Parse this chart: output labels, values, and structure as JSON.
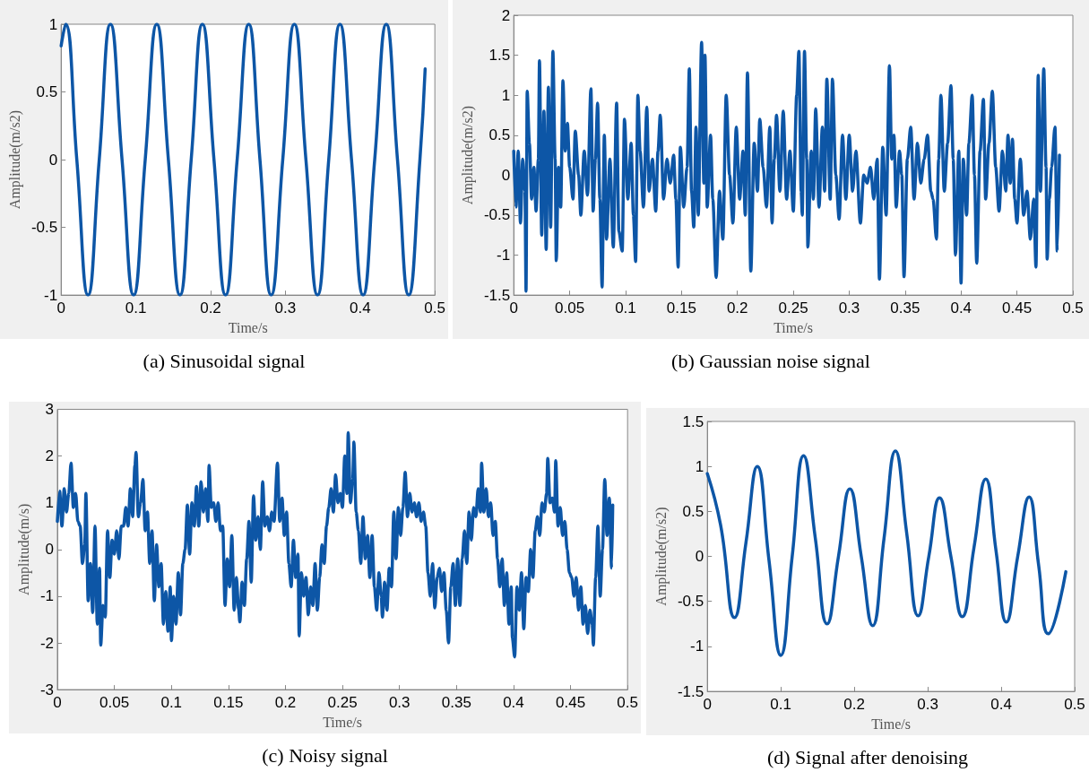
{
  "chart_data": [
    {
      "type": "line",
      "title": "(a) Sinusoidal signal",
      "xlabel": "Time/s",
      "ylabel": "Amplitude(m/s2)",
      "x": [
        0,
        0.006,
        0.021,
        0.036,
        0.051,
        0.066,
        0.0815,
        0.097,
        0.1125,
        0.128,
        0.1435,
        0.159,
        0.174,
        0.189,
        0.2045,
        0.22,
        0.2355,
        0.251,
        0.266,
        0.281,
        0.2965,
        0.312,
        0.3275,
        0.343,
        0.358,
        0.373,
        0.3885,
        0.404,
        0.4195,
        0.435,
        0.45,
        0.465,
        0.48,
        0.487
      ],
      "series": [
        {
          "color": "#0d56a6",
          "values": [
            0.84,
            1,
            0,
            -1,
            0,
            1,
            0,
            -1,
            0,
            1,
            0,
            -1,
            0,
            1,
            0,
            -1,
            0,
            1,
            0,
            -1,
            0,
            1,
            0,
            -1,
            0,
            1,
            0,
            -1,
            0,
            1,
            0,
            -1,
            0,
            0.67
          ]
        }
      ],
      "xlim": [
        0,
        0.5
      ],
      "xticks": [
        0,
        0.1,
        0.2,
        0.3,
        0.4,
        0.5
      ],
      "ylim": [
        -1,
        1
      ],
      "yticks": [
        -1,
        -0.5,
        0,
        0.5,
        1
      ]
    },
    {
      "type": "line",
      "title": "(b) Gaussian noise signal",
      "xlabel": "Time/s",
      "ylabel": "Amplitude(m/s2)",
      "x": [
        0,
        0.002,
        0.004,
        0.006,
        0.008,
        0.01,
        0.011,
        0.012,
        0.014,
        0.016,
        0.018,
        0.02,
        0.022,
        0.023,
        0.025,
        0.027,
        0.029,
        0.031,
        0.033,
        0.035,
        0.037,
        0.038,
        0.04,
        0.042,
        0.044,
        0.046,
        0.048,
        0.05,
        0.053,
        0.055,
        0.058,
        0.06,
        0.063,
        0.066,
        0.069,
        0.071,
        0.073,
        0.075,
        0.077,
        0.079,
        0.081,
        0.083,
        0.086,
        0.089,
        0.092,
        0.094,
        0.097,
        0.099,
        0.102,
        0.105,
        0.107,
        0.109,
        0.111,
        0.113,
        0.116,
        0.119,
        0.121,
        0.124,
        0.127,
        0.129,
        0.131,
        0.134,
        0.137,
        0.14,
        0.143,
        0.145,
        0.147,
        0.149,
        0.152,
        0.155,
        0.157,
        0.159,
        0.161,
        0.163,
        0.165,
        0.168,
        0.17,
        0.171,
        0.173,
        0.176,
        0.178,
        0.181,
        0.184,
        0.187,
        0.19,
        0.193,
        0.196,
        0.199,
        0.202,
        0.205,
        0.207,
        0.209,
        0.212,
        0.215,
        0.218,
        0.22,
        0.223,
        0.226,
        0.229,
        0.231,
        0.233,
        0.235,
        0.238,
        0.241,
        0.244,
        0.247,
        0.25,
        0.253,
        0.255,
        0.257,
        0.258,
        0.26,
        0.262,
        0.263,
        0.266,
        0.268,
        0.27,
        0.273,
        0.276,
        0.278,
        0.28,
        0.283,
        0.285,
        0.288,
        0.291,
        0.294,
        0.297,
        0.3,
        0.303,
        0.306,
        0.31,
        0.313,
        0.316,
        0.319,
        0.322,
        0.325,
        0.327,
        0.33,
        0.333,
        0.336,
        0.338,
        0.34,
        0.342,
        0.345,
        0.347,
        0.349,
        0.352,
        0.355,
        0.358,
        0.361,
        0.364,
        0.367,
        0.37,
        0.373,
        0.375,
        0.378,
        0.38,
        0.382,
        0.385,
        0.388,
        0.391,
        0.393,
        0.395,
        0.398,
        0.4,
        0.402,
        0.405,
        0.407,
        0.41,
        0.412,
        0.414,
        0.417,
        0.42,
        0.422,
        0.425,
        0.428,
        0.431,
        0.434,
        0.437,
        0.44,
        0.442,
        0.444,
        0.446,
        0.448,
        0.45,
        0.453,
        0.456,
        0.459,
        0.462,
        0.465,
        0.467,
        0.469,
        0.471,
        0.474,
        0.476,
        0.477,
        0.479,
        0.481,
        0.484,
        0.486,
        0.488
      ],
      "series": [
        {
          "color": "#0d56a6",
          "values": [
            0.3,
            -0.4,
            0.3,
            -0.6,
            0.2,
            -0.2,
            -1.45,
            1.05,
            0.4,
            -0.3,
            0.1,
            -0.45,
            0.2,
            1.43,
            -0.75,
            0.8,
            -0.93,
            1.1,
            -0.65,
            1.55,
            0.2,
            -1.07,
            0.1,
            -0.4,
            1.18,
            0.3,
            0.65,
            0.1,
            -0.3,
            0.55,
            0,
            -0.5,
            0.3,
            -0.25,
            1.08,
            -0.45,
            0.2,
            0.9,
            -0.3,
            -1.4,
            0.5,
            -0.8,
            0.2,
            -0.9,
            0.9,
            -0.7,
            -0.95,
            0.7,
            -0.3,
            0.4,
            -0.5,
            -1.08,
            1,
            0.3,
            -0.4,
            0.85,
            -0.2,
            0.2,
            -0.45,
            0.3,
            0.75,
            -0.3,
            0.2,
            -0.1,
            0.25,
            -0.3,
            -1.15,
            0.35,
            -0.4,
            0.1,
            1.33,
            -0.2,
            -0.65,
            0.6,
            -0.5,
            1.66,
            -0.1,
            1.5,
            -0.4,
            0.5,
            -0.3,
            -1.28,
            -0.2,
            -0.8,
            1,
            0,
            -0.6,
            0.6,
            -0.3,
            0.3,
            -0.5,
            1.28,
            -1.2,
            0.4,
            -0.2,
            0.7,
            0.1,
            -0.4,
            0.6,
            -0.6,
            0.2,
            0.75,
            -0.2,
            0.8,
            -0.3,
            0.3,
            -0.45,
            1,
            1.55,
            -0.2,
            -0.5,
            1.55,
            0.2,
            -0.9,
            0.3,
            -0.3,
            0.83,
            -0.4,
            0.6,
            -0.2,
            1.2,
            -0.3,
            1.2,
            0,
            -0.55,
            0.5,
            -0.3,
            0.5,
            -0.2,
            0.3,
            -0.6,
            0,
            -0.1,
            0.1,
            -0.3,
            0.2,
            -1.3,
            0.35,
            -0.5,
            1.37,
            0.2,
            0.5,
            -0.4,
            0.3,
            0,
            -1.27,
            0.2,
            0.6,
            -0.3,
            0.4,
            -0.1,
            0.2,
            0.5,
            -0.2,
            -0.3,
            -0.8,
            0.2,
            1,
            -0.2,
            0.4,
            1.12,
            0.2,
            -1,
            0.3,
            -1.35,
            0.2,
            -0.5,
            0.4,
            1,
            0,
            -1.1,
            0.3,
            0.95,
            -0.3,
            0.4,
            1.05,
            0.1,
            -0.45,
            0.3,
            -0.2,
            0.5,
            -0.1,
            0.45,
            -0.3,
            -0.6,
            0.2,
            -0.5,
            -0.2,
            -0.8,
            -0.3,
            -1.15,
            1.25,
            -0.2,
            1.33,
            0.1,
            -1.05,
            -0.3,
            0.1,
            0.6,
            -0.95,
            0.25
          ]
        }
      ],
      "xlim": [
        0,
        0.5
      ],
      "xticks": [
        0,
        0.05,
        0.1,
        0.15,
        0.2,
        0.25,
        0.3,
        0.35,
        0.4,
        0.45,
        0.5
      ],
      "ylim": [
        -1.5,
        2
      ],
      "yticks": [
        -1.5,
        -1,
        -0.5,
        0,
        0.5,
        1,
        1.5,
        2
      ]
    },
    {
      "type": "line",
      "title": "(c) Noisy signal",
      "xlabel": "Time/s",
      "ylabel": "Amplitude(m/s)",
      "x": [
        0,
        0.002,
        0.004,
        0.006,
        0.008,
        0.01,
        0.012,
        0.014,
        0.016,
        0.018,
        0.02,
        0.022,
        0.024,
        0.025,
        0.027,
        0.029,
        0.031,
        0.033,
        0.035,
        0.037,
        0.038,
        0.04,
        0.042,
        0.044,
        0.046,
        0.048,
        0.05,
        0.052,
        0.054,
        0.056,
        0.058,
        0.06,
        0.062,
        0.064,
        0.066,
        0.068,
        0.069,
        0.071,
        0.073,
        0.075,
        0.077,
        0.079,
        0.081,
        0.083,
        0.085,
        0.087,
        0.089,
        0.091,
        0.093,
        0.095,
        0.097,
        0.099,
        0.1,
        0.102,
        0.104,
        0.106,
        0.108,
        0.11,
        0.112,
        0.114,
        0.116,
        0.118,
        0.12,
        0.122,
        0.124,
        0.126,
        0.128,
        0.13,
        0.132,
        0.133,
        0.135,
        0.137,
        0.139,
        0.141,
        0.143,
        0.145,
        0.147,
        0.149,
        0.151,
        0.153,
        0.155,
        0.157,
        0.159,
        0.16,
        0.162,
        0.164,
        0.166,
        0.168,
        0.17,
        0.172,
        0.174,
        0.176,
        0.178,
        0.18,
        0.182,
        0.184,
        0.186,
        0.188,
        0.19,
        0.193,
        0.195,
        0.197,
        0.199,
        0.201,
        0.203,
        0.205,
        0.207,
        0.209,
        0.211,
        0.212,
        0.214,
        0.216,
        0.218,
        0.22,
        0.222,
        0.224,
        0.226,
        0.228,
        0.23,
        0.232,
        0.234,
        0.236,
        0.238,
        0.24,
        0.242,
        0.244,
        0.246,
        0.248,
        0.25,
        0.252,
        0.254,
        0.255,
        0.257,
        0.259,
        0.26,
        0.262,
        0.264,
        0.266,
        0.268,
        0.27,
        0.272,
        0.274,
        0.276,
        0.278,
        0.28,
        0.282,
        0.284,
        0.285,
        0.287,
        0.289,
        0.291,
        0.293,
        0.295,
        0.297,
        0.299,
        0.301,
        0.303,
        0.305,
        0.307,
        0.309,
        0.311,
        0.313,
        0.315,
        0.317,
        0.319,
        0.321,
        0.323,
        0.325,
        0.327,
        0.329,
        0.331,
        0.333,
        0.335,
        0.337,
        0.339,
        0.341,
        0.343,
        0.345,
        0.347,
        0.349,
        0.351,
        0.353,
        0.355,
        0.357,
        0.359,
        0.361,
        0.363,
        0.365,
        0.367,
        0.369,
        0.371,
        0.372,
        0.374,
        0.376,
        0.378,
        0.38,
        0.382,
        0.384,
        0.386,
        0.388,
        0.39,
        0.392,
        0.394,
        0.396,
        0.398,
        0.399,
        0.401,
        0.403,
        0.405,
        0.407,
        0.409,
        0.411,
        0.413,
        0.415,
        0.417,
        0.419,
        0.421,
        0.423,
        0.425,
        0.427,
        0.429,
        0.43,
        0.432,
        0.434,
        0.436,
        0.437,
        0.439,
        0.441,
        0.443,
        0.445,
        0.447,
        0.449,
        0.451,
        0.453,
        0.455,
        0.457,
        0.459,
        0.461,
        0.463,
        0.465,
        0.467,
        0.469,
        0.47,
        0.472,
        0.474,
        0.476,
        0.478,
        0.48,
        0.482,
        0.484,
        0.486,
        0.487
      ],
      "series": [
        {
          "color": "#0d56a6",
          "values": [
            0.6,
            1.25,
            0.5,
            1.3,
            0.8,
            1.2,
            1.85,
            0.9,
            1.2,
            0.6,
            0.5,
            -0.3,
            0.1,
            1.2,
            -1.1,
            -0.3,
            -1.35,
            0.5,
            -1.6,
            -0.4,
            -2.05,
            -1.2,
            -1.45,
            0.4,
            -0.6,
            0.2,
            -0.1,
            0.4,
            -0.2,
            0.5,
            0.5,
            0.9,
            0.5,
            1.3,
            0.7,
            1.8,
            2.08,
            0.7,
            1,
            1.5,
            0.4,
            0.8,
            -0.3,
            0.4,
            -1.1,
            0.1,
            -0.8,
            -0.3,
            -1.6,
            -0.9,
            -1.75,
            -0.8,
            -1.95,
            -1,
            -1.6,
            -0.5,
            -1.4,
            -0.3,
            0,
            0.95,
            -0.1,
            1,
            0.5,
            1.35,
            0.5,
            1.45,
            0.8,
            1.3,
            0.6,
            1.8,
            0.9,
            1,
            0.6,
            1,
            0.4,
            0.5,
            -1.2,
            -0.2,
            -0.8,
            0.3,
            -1.3,
            -0.6,
            -1.3,
            -1.55,
            -0.7,
            -1.2,
            -0.2,
            0.6,
            -0.7,
            1.15,
            0.2,
            0.7,
            0,
            1.45,
            0.5,
            0.7,
            0.4,
            0.8,
            0.6,
            1.85,
            0.6,
            1.1,
            0.3,
            0.8,
            -0.3,
            -0.8,
            0.2,
            -0.6,
            -0.1,
            -1.85,
            -0.5,
            -1,
            -0.6,
            -1.4,
            -0.8,
            -1.2,
            -0.3,
            -1.3,
            -0.6,
            0.1,
            -0.3,
            0.5,
            0.9,
            1.3,
            0.8,
            1.6,
            1,
            1.2,
            0.9,
            2,
            1.2,
            2.5,
            1,
            1.5,
            2.3,
            0.8,
            0.4,
            -0.3,
            0.7,
            -0.2,
            0.3,
            -0.6,
            0.3,
            -0.8,
            -1.3,
            -0.5,
            -1,
            -1.45,
            -0.7,
            -1.3,
            -0.4,
            -0.8,
            0.8,
            -0.2,
            0.9,
            0.3,
            0.9,
            1.65,
            0.7,
            1.2,
            0.8,
            1,
            0.7,
            1,
            0.6,
            0.8,
            0.5,
            -0.5,
            -1,
            -0.3,
            -1.25,
            -0.6,
            -0.4,
            -0.9,
            -0.5,
            -1.3,
            -2,
            -0.8,
            -0.3,
            -1.2,
            -0.2,
            -1.2,
            -0.2,
            0.4,
            -0.3,
            0.8,
            0.2,
            0.9,
            0.7,
            1.3,
            0.8,
            1.85,
            0.8,
            1.3,
            0.7,
            1,
            0.3,
            0.6,
            -0.2,
            -0.8,
            -0.2,
            -1.2,
            -0.5,
            -1.6,
            -0.8,
            -1.9,
            -2.3,
            -0.8,
            -1.3,
            -0.5,
            -1.7,
            -0.6,
            -0.9,
            0,
            -0.6,
            0.4,
            0.7,
            0.3,
            1,
            0.8,
            1.2,
            1.95,
            1,
            1.1,
            0.8,
            1.9,
            0.5,
            0.9,
            0.3,
            0.6,
            0,
            -0.5,
            -0.6,
            -1,
            -0.6,
            -1.3,
            -0.8,
            -1.6,
            -1.2,
            -1.8,
            -1.3,
            -1.6,
            -2.05,
            -0.6,
            0.5,
            -1,
            0,
            1.5,
            0.3,
            1.1,
            -0.4,
            0.95
          ]
        }
      ],
      "xlim": [
        0,
        0.5
      ],
      "xticks": [
        0,
        0.05,
        0.1,
        0.15,
        0.2,
        0.25,
        0.3,
        0.35,
        0.4,
        0.45,
        0.5
      ],
      "ylim": [
        -3,
        3
      ],
      "yticks": [
        -3,
        -2,
        -1,
        0,
        1,
        2,
        3
      ]
    },
    {
      "type": "line",
      "title": "(d) Signal after denoising",
      "xlabel": "Time/s",
      "ylabel": "Amplitude(m/s2)",
      "x": [
        0,
        0.018,
        0.037,
        0.0525,
        0.068,
        0.084,
        0.1,
        0.1155,
        0.131,
        0.147,
        0.163,
        0.1785,
        0.194,
        0.2095,
        0.225,
        0.2405,
        0.256,
        0.2715,
        0.287,
        0.3015,
        0.316,
        0.3315,
        0.347,
        0.363,
        0.379,
        0.393,
        0.407,
        0.4225,
        0.438,
        0.451,
        0.464,
        0.488
      ],
      "series": [
        {
          "color": "#0d56a6",
          "values": [
            0.92,
            0.35,
            -0.68,
            0.15,
            1,
            -0.05,
            -1.1,
            0,
            1.12,
            0.2,
            -0.75,
            0,
            0.75,
            0,
            -0.77,
            0.2,
            1.17,
            0.25,
            -0.66,
            0,
            0.65,
            0,
            -0.67,
            0.1,
            0.86,
            0.06,
            -0.73,
            0,
            0.66,
            -0.1,
            -0.86,
            -0.17
          ]
        }
      ],
      "xlim": [
        0,
        0.5
      ],
      "xticks": [
        0,
        0.1,
        0.2,
        0.3,
        0.4,
        0.5
      ],
      "ylim": [
        -1.5,
        1.5
      ],
      "yticks": [
        -1.5,
        -1,
        -0.5,
        0,
        0.5,
        1,
        1.5
      ]
    }
  ]
}
